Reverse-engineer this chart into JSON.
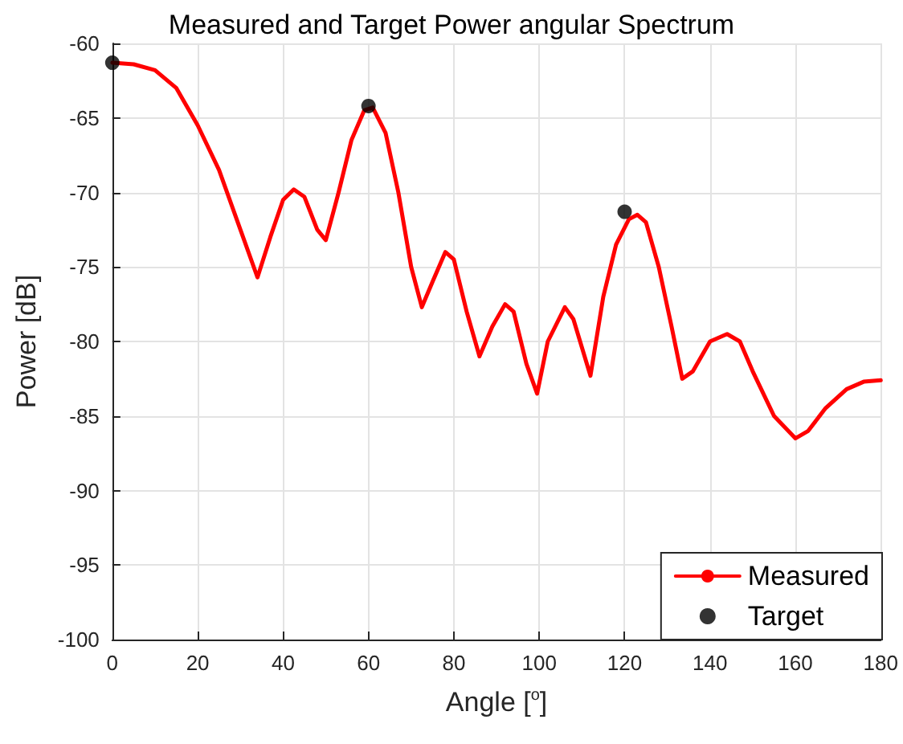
{
  "chart_data": {
    "type": "line",
    "title": "Measured and Target Power angular Spectrum",
    "xlabel": "Angle [$^{o}$]",
    "ylabel": "Power [dB]",
    "xlim": [
      0,
      180
    ],
    "xticks": [
      0,
      20,
      40,
      60,
      80,
      100,
      120,
      140,
      160,
      180
    ],
    "ylim": [
      -100,
      -60
    ],
    "yticks": [
      -100,
      -95,
      -90,
      -85,
      -80,
      -75,
      -70,
      -65,
      -60
    ],
    "grid": true,
    "legend": "bottom right",
    "series": [
      {
        "name": "Measured",
        "color": "#ff0000",
        "marker": "none",
        "line_style": "solid",
        "x": [
          0,
          5,
          10,
          15,
          20,
          25,
          30,
          34,
          37,
          40,
          42.5,
          45,
          48,
          50,
          53,
          56,
          59,
          61,
          64,
          67,
          70,
          72.5,
          75,
          78,
          80,
          83,
          86,
          89,
          92,
          94,
          97,
          99.5,
          102,
          106,
          108,
          112,
          115,
          118,
          121,
          123,
          125,
          128,
          131,
          133.5,
          136,
          140,
          144,
          147,
          150,
          155,
          160,
          163,
          167,
          172,
          176,
          180
        ],
        "values": [
          -61.3,
          -61.4,
          -61.8,
          -63,
          -65.5,
          -68.5,
          -72.5,
          -75.7,
          -73,
          -70.5,
          -69.8,
          -70.3,
          -72.5,
          -73.2,
          -70,
          -66.5,
          -64.5,
          -64.3,
          -66,
          -70,
          -75,
          -77.7,
          -76,
          -74,
          -74.5,
          -78,
          -81,
          -79,
          -77.5,
          -78,
          -81.5,
          -83.5,
          -80,
          -77.7,
          -78.5,
          -82.3,
          -77,
          -73.5,
          -71.8,
          -71.5,
          -72,
          -75,
          -79,
          -82.5,
          -82,
          -80,
          -79.5,
          -80,
          -82,
          -85,
          -86.5,
          -86,
          -84.5,
          -83.2,
          -82.7,
          -82.6
        ]
      },
      {
        "name": "Target",
        "type": "scatter",
        "color": "#000000",
        "marker": "circle",
        "x": [
          0,
          60,
          120
        ],
        "values": [
          -61.3,
          -64.2,
          -71.3
        ]
      }
    ]
  }
}
